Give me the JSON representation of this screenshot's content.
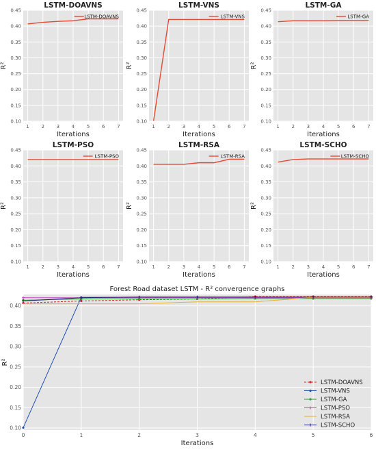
{
  "colors": {
    "panel_bg": "#e5e5e5",
    "grid": "#ffffff",
    "small_line": "#e24a33",
    "tick_text": "#555555",
    "text": "#222222"
  },
  "chart_data": [
    {
      "type": "line",
      "title": "LSTM-DOAVNS",
      "xlabel": "Iterations",
      "ylabel": "R²",
      "x": [
        1,
        2,
        3,
        4,
        5,
        6,
        7
      ],
      "series": [
        {
          "name": "LSTM-DOAVNS",
          "values": [
            0.407,
            0.412,
            0.415,
            0.417,
            0.423,
            0.423,
            0.423
          ]
        }
      ],
      "xlim": [
        0.7,
        7.3
      ],
      "ylim": [
        0.1,
        0.45
      ],
      "xticks": [
        1,
        2,
        3,
        4,
        5,
        6,
        7
      ],
      "yticks": [
        0.1,
        0.15,
        0.2,
        0.25,
        0.3,
        0.35,
        0.4,
        0.45
      ],
      "legend": "upper right",
      "grid": true
    },
    {
      "type": "line",
      "title": "LSTM-VNS",
      "xlabel": "Iterations",
      "ylabel": "R²",
      "x": [
        1,
        2,
        3,
        4,
        5,
        6,
        7
      ],
      "series": [
        {
          "name": "LSTM-VNS",
          "values": [
            0.101,
            0.421,
            0.421,
            0.421,
            0.421,
            0.421,
            0.421
          ]
        }
      ],
      "xlim": [
        0.7,
        7.3
      ],
      "ylim": [
        0.1,
        0.45
      ],
      "xticks": [
        1,
        2,
        3,
        4,
        5,
        6,
        7
      ],
      "yticks": [
        0.1,
        0.15,
        0.2,
        0.25,
        0.3,
        0.35,
        0.4,
        0.45
      ],
      "legend": "upper right",
      "grid": true
    },
    {
      "type": "line",
      "title": "LSTM-GA",
      "xlabel": "Iterations",
      "ylabel": "R²",
      "x": [
        1,
        2,
        3,
        4,
        5,
        6,
        7
      ],
      "series": [
        {
          "name": "LSTM-GA",
          "values": [
            0.414,
            0.417,
            0.417,
            0.417,
            0.418,
            0.418,
            0.418
          ]
        }
      ],
      "xlim": [
        0.7,
        7.3
      ],
      "ylim": [
        0.1,
        0.45
      ],
      "xticks": [
        1,
        2,
        3,
        4,
        5,
        6,
        7
      ],
      "yticks": [
        0.1,
        0.15,
        0.2,
        0.25,
        0.3,
        0.35,
        0.4,
        0.45
      ],
      "legend": "upper right",
      "grid": true
    },
    {
      "type": "line",
      "title": "LSTM-PSO",
      "xlabel": "Iterations",
      "ylabel": "R²",
      "x": [
        1,
        2,
        3,
        4,
        5,
        6,
        7
      ],
      "series": [
        {
          "name": "LSTM-PSO",
          "values": [
            0.42,
            0.42,
            0.42,
            0.42,
            0.42,
            0.42,
            0.42
          ]
        }
      ],
      "xlim": [
        0.7,
        7.3
      ],
      "ylim": [
        0.1,
        0.45
      ],
      "xticks": [
        1,
        2,
        3,
        4,
        5,
        6,
        7
      ],
      "yticks": [
        0.1,
        0.15,
        0.2,
        0.25,
        0.3,
        0.35,
        0.4,
        0.45
      ],
      "legend": "upper right",
      "grid": true
    },
    {
      "type": "line",
      "title": "LSTM-RSA",
      "xlabel": "Iterations",
      "ylabel": "R²",
      "x": [
        1,
        2,
        3,
        4,
        5,
        6,
        7
      ],
      "series": [
        {
          "name": "LSTM-RSA",
          "values": [
            0.405,
            0.405,
            0.405,
            0.41,
            0.41,
            0.421,
            0.421
          ]
        }
      ],
      "xlim": [
        0.7,
        7.3
      ],
      "ylim": [
        0.1,
        0.45
      ],
      "xticks": [
        1,
        2,
        3,
        4,
        5,
        6,
        7
      ],
      "yticks": [
        0.1,
        0.15,
        0.2,
        0.25,
        0.3,
        0.35,
        0.4,
        0.45
      ],
      "legend": "upper right",
      "grid": true
    },
    {
      "type": "line",
      "title": "LSTM-SCHO",
      "xlabel": "Iterations",
      "ylabel": "R²",
      "x": [
        1,
        2,
        3,
        4,
        5,
        6,
        7
      ],
      "series": [
        {
          "name": "LSTM-SCHO",
          "values": [
            0.412,
            0.42,
            0.422,
            0.422,
            0.422,
            0.422,
            0.422
          ]
        }
      ],
      "xlim": [
        0.7,
        7.3
      ],
      "ylim": [
        0.1,
        0.45
      ],
      "xticks": [
        1,
        2,
        3,
        4,
        5,
        6,
        7
      ],
      "yticks": [
        0.1,
        0.15,
        0.2,
        0.25,
        0.3,
        0.35,
        0.4,
        0.45
      ],
      "legend": "upper right",
      "grid": true
    },
    {
      "type": "line",
      "title": "Forest Road dataset LSTM -  R² convergence graphs",
      "xlabel": "Iterations",
      "ylabel": "R²",
      "x": [
        0,
        1,
        2,
        3,
        4,
        5,
        6
      ],
      "series": [
        {
          "name": "LSTM-DOAVNS",
          "color": "#d62728",
          "dashed": true,
          "marker": "circle",
          "values": [
            0.407,
            0.412,
            0.415,
            0.417,
            0.423,
            0.423,
            0.423
          ]
        },
        {
          "name": "LSTM-VNS",
          "color": "#1f4fb4",
          "dashed": false,
          "marker": "circle",
          "values": [
            0.101,
            0.421,
            0.421,
            0.421,
            0.421,
            0.421,
            0.421
          ]
        },
        {
          "name": "LSTM-GA",
          "color": "#2ca02c",
          "dashed": false,
          "marker": "circle",
          "values": [
            0.414,
            0.417,
            0.417,
            0.417,
            0.418,
            0.418,
            0.418
          ]
        },
        {
          "name": "LSTM-PSO",
          "color": "#c040c0",
          "dashed": false,
          "marker": "plus",
          "values": [
            0.42,
            0.42,
            0.42,
            0.42,
            0.42,
            0.42,
            0.42
          ]
        },
        {
          "name": "LSTM-RSA",
          "color": "#e8b030",
          "dashed": false,
          "marker": "none",
          "values": [
            0.405,
            0.405,
            0.405,
            0.41,
            0.41,
            0.421,
            0.421
          ]
        },
        {
          "name": "LSTM-SCHO",
          "color": "#22227a",
          "dashed": false,
          "marker": "plus",
          "values": [
            0.412,
            0.42,
            0.422,
            0.422,
            0.422,
            0.422,
            0.422
          ]
        }
      ],
      "xlim": [
        0,
        6
      ],
      "ylim": [
        0.095,
        0.428
      ],
      "xticks": [
        0,
        1,
        2,
        3,
        4,
        5,
        6
      ],
      "yticks": [
        0.1,
        0.15,
        0.2,
        0.25,
        0.3,
        0.35,
        0.4
      ],
      "legend": "lower right",
      "grid": true
    }
  ]
}
